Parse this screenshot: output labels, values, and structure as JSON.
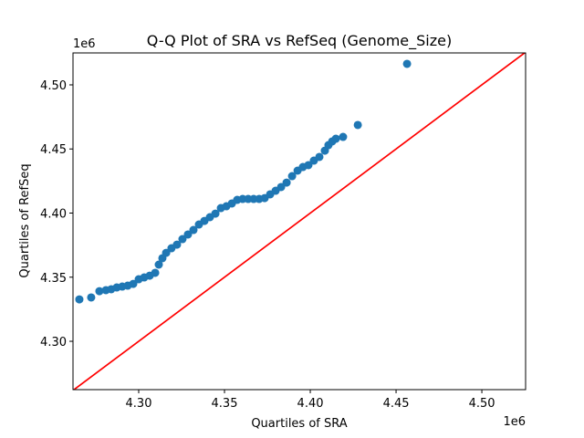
{
  "chart_data": {
    "type": "scatter",
    "title": "Q-Q Plot of SRA vs RefSeq (Genome_Size)",
    "x_label": "Quartiles of SRA",
    "y_label": "Quartiles of RefSeq",
    "x_offset": "1e6",
    "y_offset": "1e6",
    "xlim": [
      4261700,
      4525500
    ],
    "ylim": [
      4262300,
      4524900
    ],
    "xticks": [
      {
        "value": 4300000,
        "label": "4.30"
      },
      {
        "value": 4350000,
        "label": "4.35"
      },
      {
        "value": 4400000,
        "label": "4.40"
      },
      {
        "value": 4450000,
        "label": "4.45"
      },
      {
        "value": 4500000,
        "label": "4.50"
      }
    ],
    "yticks": [
      {
        "value": 4300000,
        "label": "4.30"
      },
      {
        "value": 4350000,
        "label": "4.35"
      },
      {
        "value": 4400000,
        "label": "4.40"
      },
      {
        "value": 4450000,
        "label": "4.45"
      },
      {
        "value": 4500000,
        "label": "4.50"
      }
    ],
    "series": [
      {
        "type": "scatter",
        "color": "#1f77b4",
        "x": [
          4265400,
          4272300,
          4277100,
          4280900,
          4284000,
          4287200,
          4290400,
          4293600,
          4296800,
          4300000,
          4303200,
          4306400,
          4309600,
          4311700,
          4313800,
          4316000,
          4319100,
          4322300,
          4325500,
          4328700,
          4331900,
          4335100,
          4338300,
          4341500,
          4344700,
          4347900,
          4351100,
          4354300,
          4357400,
          4360600,
          4363800,
          4367000,
          4370200,
          4373400,
          4376600,
          4379800,
          4383000,
          4386200,
          4389400,
          4392600,
          4395700,
          4398900,
          4402100,
          4405300,
          4408500,
          4410600,
          4412800,
          4414900,
          4419100,
          4427700,
          4456400
        ],
        "values": [
          4332700,
          4334200,
          4339100,
          4339900,
          4340600,
          4342000,
          4342700,
          4343400,
          4344800,
          4348400,
          4349800,
          4351200,
          4353400,
          4359800,
          4364800,
          4369000,
          4372600,
          4375400,
          4379700,
          4383300,
          4386800,
          4391100,
          4393900,
          4396800,
          4399600,
          4403900,
          4405300,
          4407500,
          4410300,
          4411000,
          4411000,
          4411000,
          4411000,
          4411700,
          4414600,
          4417400,
          4420300,
          4423800,
          4428800,
          4433100,
          4435900,
          4437400,
          4440900,
          4443800,
          4448700,
          4453000,
          4455900,
          4458000,
          4459400,
          4468700,
          4516400
        ]
      },
      {
        "type": "line",
        "color": "#ff0000",
        "x": [
          4261700,
          4525500
        ],
        "values": [
          4261700,
          4525500
        ]
      }
    ]
  }
}
